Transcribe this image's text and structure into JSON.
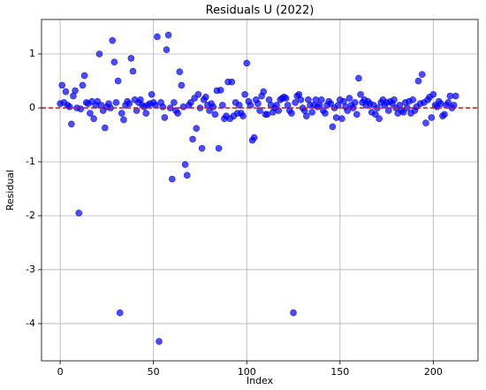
{
  "chart_data": {
    "type": "scatter",
    "title": "Residuals U (2022)",
    "xlabel": "Index",
    "ylabel": "Residual",
    "x": [
      0,
      1,
      2,
      3,
      4,
      5,
      6,
      7,
      8,
      9,
      10,
      11,
      12,
      13,
      14,
      15,
      16,
      17,
      18,
      19,
      20,
      21,
      22,
      23,
      24,
      25,
      26,
      27,
      28,
      29,
      30,
      31,
      32,
      33,
      34,
      35,
      36,
      37,
      38,
      39,
      40,
      41,
      42,
      43,
      44,
      45,
      46,
      47,
      48,
      49,
      50,
      51,
      52,
      53,
      54,
      55,
      56,
      57,
      58,
      59,
      60,
      61,
      62,
      63,
      64,
      65,
      66,
      67,
      68,
      69,
      70,
      71,
      72,
      73,
      74,
      75,
      76,
      77,
      78,
      79,
      80,
      81,
      82,
      83,
      84,
      85,
      86,
      87,
      88,
      89,
      90,
      91,
      92,
      93,
      94,
      95,
      96,
      97,
      98,
      99,
      100,
      101,
      102,
      103,
      104,
      105,
      106,
      107,
      108,
      109,
      110,
      111,
      112,
      113,
      114,
      115,
      116,
      117,
      118,
      119,
      120,
      121,
      122,
      123,
      124,
      125,
      126,
      127,
      128,
      129,
      130,
      131,
      132,
      133,
      134,
      135,
      136,
      137,
      138,
      139,
      140,
      141,
      142,
      143,
      144,
      145,
      146,
      147,
      148,
      149,
      150,
      151,
      152,
      153,
      154,
      155,
      156,
      157,
      158,
      159,
      160,
      161,
      162,
      163,
      164,
      165,
      166,
      167,
      168,
      169,
      170,
      171,
      172,
      173,
      174,
      175,
      176,
      177,
      178,
      179,
      180,
      181,
      182,
      183,
      184,
      185,
      186,
      187,
      188,
      189,
      190,
      191,
      192,
      193,
      194,
      195,
      196,
      197,
      198,
      199,
      200,
      201,
      202,
      203,
      204,
      205,
      206,
      207,
      208,
      209,
      210,
      211,
      212
    ],
    "values": [
      0.08,
      0.42,
      0.1,
      0.3,
      0.05,
      0.02,
      -0.3,
      0.22,
      0.32,
      0.0,
      -1.95,
      -0.02,
      0.42,
      0.6,
      0.1,
      0.08,
      -0.1,
      0.12,
      -0.2,
      0.05,
      0.12,
      1.0,
      0.05,
      -0.05,
      -0.37,
      0.02,
      0.08,
      0.0,
      1.25,
      0.85,
      0.1,
      0.5,
      -3.8,
      -0.1,
      -0.22,
      0.05,
      0.12,
      0.08,
      0.92,
      0.68,
      0.15,
      -0.05,
      0.1,
      0.15,
      0.05,
      0.02,
      -0.1,
      0.05,
      0.08,
      0.25,
      0.1,
      0.05,
      1.32,
      -4.33,
      0.1,
      0.02,
      -0.18,
      1.08,
      1.35,
      0.0,
      -1.32,
      0.1,
      -0.05,
      -0.1,
      0.67,
      0.42,
      0.02,
      -1.05,
      -1.25,
      0.05,
      0.1,
      -0.58,
      0.18,
      -0.38,
      0.25,
      0.0,
      -0.75,
      0.15,
      0.2,
      0.05,
      -0.05,
      0.08,
      0.02,
      -0.12,
      0.32,
      -0.75,
      0.33,
      0.05,
      -0.2,
      -0.15,
      0.48,
      -0.2,
      0.48,
      -0.15,
      0.1,
      -0.1,
      0.05,
      -0.1,
      -0.15,
      0.25,
      0.83,
      0.12,
      0.05,
      -0.6,
      -0.55,
      0.15,
      0.08,
      -0.05,
      0.22,
      0.3,
      -0.12,
      -0.12,
      0.15,
      0.05,
      -0.08,
      0.0,
      0.05,
      -0.05,
      0.15,
      0.18,
      0.2,
      0.18,
      0.05,
      -0.05,
      -0.1,
      -3.8,
      0.1,
      0.22,
      0.25,
      0.15,
      0.0,
      -0.05,
      -0.15,
      0.15,
      0.05,
      -0.08,
      0.05,
      0.15,
      0.02,
      0.05,
      0.15,
      -0.05,
      -0.1,
      0.05,
      0.12,
      0.08,
      -0.35,
      0.0,
      -0.18,
      0.05,
      0.15,
      -0.2,
      0.12,
      0.02,
      -0.05,
      0.18,
      0.05,
      0.0,
      0.1,
      -0.12,
      0.55,
      0.25,
      0.1,
      0.15,
      0.05,
      0.12,
      0.08,
      -0.08,
      0.05,
      -0.12,
      0.0,
      -0.2,
      0.1,
      0.15,
      0.05,
      0.1,
      -0.05,
      0.12,
      0.08,
      0.15,
      0.0,
      -0.1,
      0.05,
      -0.05,
      -0.08,
      0.1,
      0.0,
      0.12,
      -0.1,
      0.15,
      -0.05,
      0.02,
      0.5,
      0.08,
      0.62,
      0.1,
      -0.28,
      0.15,
      0.2,
      -0.18,
      0.25,
      0.05,
      0.02,
      0.12,
      0.08,
      -0.15,
      -0.12,
      0.05,
      0.1,
      0.22,
      0.0,
      0.05,
      0.22
    ],
    "color": "#0000ff",
    "hline": {
      "value": 0,
      "color": "#ff0000"
    },
    "xlim": [
      -10,
      224
    ],
    "ylim": [
      -4.69,
      1.64
    ],
    "xticks": [
      0,
      50,
      100,
      150,
      200
    ],
    "yticks": [
      -4,
      -3,
      -2,
      -1,
      0,
      1
    ],
    "grid": true
  }
}
